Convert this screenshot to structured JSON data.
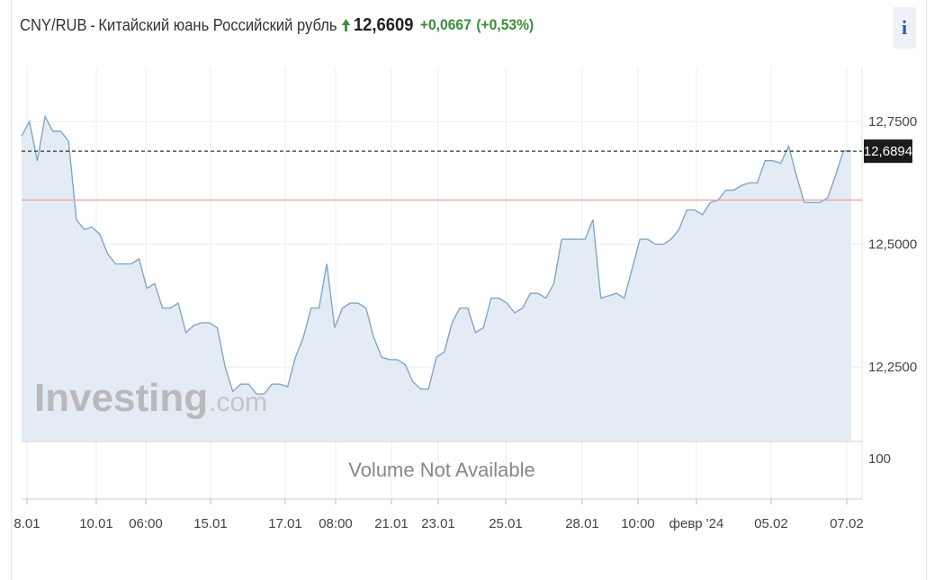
{
  "header": {
    "pair": "CNY/RUB",
    "separator": "-",
    "name": "Китайский юань Российский рубль",
    "price": "12,6609",
    "change": "+0,0667",
    "change_pct": "(+0,53%)",
    "direction_icon": "arrow-up-icon",
    "up_color": "#3b8c3b"
  },
  "info_button": {
    "label": "i",
    "icon": "info-icon"
  },
  "chart_data": {
    "type": "area",
    "y_axis_ticks": [
      "12,7500",
      "12,5000",
      "12,2500"
    ],
    "y_tick_values": [
      12.75,
      12.5,
      12.25
    ],
    "ylim": [
      12.1,
      12.86
    ],
    "x_tick_labels": [
      "8.01",
      "10.01",
      "06:00",
      "15.01",
      "17.01",
      "08:00",
      "21.01",
      "23.01",
      "25.01",
      "28.01",
      "10:00",
      "февр '24",
      "05.02",
      "07.02"
    ],
    "current_value_label": "12,6894",
    "current_value": 12.6894,
    "reference_line_value": 12.59,
    "volume_label": "Volume Not Available",
    "volume_axis_label": "100",
    "watermark": {
      "main": "Investing",
      "suffix": ".com"
    },
    "series": [
      {
        "values": [
          12.72,
          12.75,
          12.67,
          12.76,
          12.73,
          12.73,
          12.71,
          12.55,
          12.53,
          12.535,
          12.52,
          12.48,
          12.46,
          12.46,
          12.46,
          12.47,
          12.41,
          12.42,
          12.37,
          12.37,
          12.38,
          12.32,
          12.335,
          12.34,
          12.34,
          12.33,
          12.25,
          12.2,
          12.215,
          12.215,
          12.195,
          12.195,
          12.215,
          12.215,
          12.21,
          12.27,
          12.31,
          12.37,
          12.37,
          12.46,
          12.33,
          12.37,
          12.38,
          12.38,
          12.37,
          12.31,
          12.27,
          12.265,
          12.265,
          12.255,
          12.22,
          12.205,
          12.205,
          12.27,
          12.28,
          12.34,
          12.37,
          12.37,
          12.32,
          12.33,
          12.39,
          12.39,
          12.38,
          12.36,
          12.37,
          12.4,
          12.4,
          12.39,
          12.42,
          12.51,
          12.51,
          12.51,
          12.51,
          12.55,
          12.39,
          12.395,
          12.4,
          12.39,
          12.45,
          12.51,
          12.51,
          12.5,
          12.5,
          12.51,
          12.53,
          12.57,
          12.57,
          12.56,
          12.585,
          12.59,
          12.61,
          12.61,
          12.62,
          12.625,
          12.625,
          12.67,
          12.67,
          12.665,
          12.7,
          12.64,
          12.585,
          12.585,
          12.585,
          12.595,
          12.64,
          12.69,
          12.69
        ]
      }
    ],
    "colors": {
      "line": "#7fa7c9",
      "fill": "#e3ecf5",
      "reference": "#f2a0a0",
      "current_label_bg": "#1b1b1b",
      "grid": "#ececec"
    }
  }
}
